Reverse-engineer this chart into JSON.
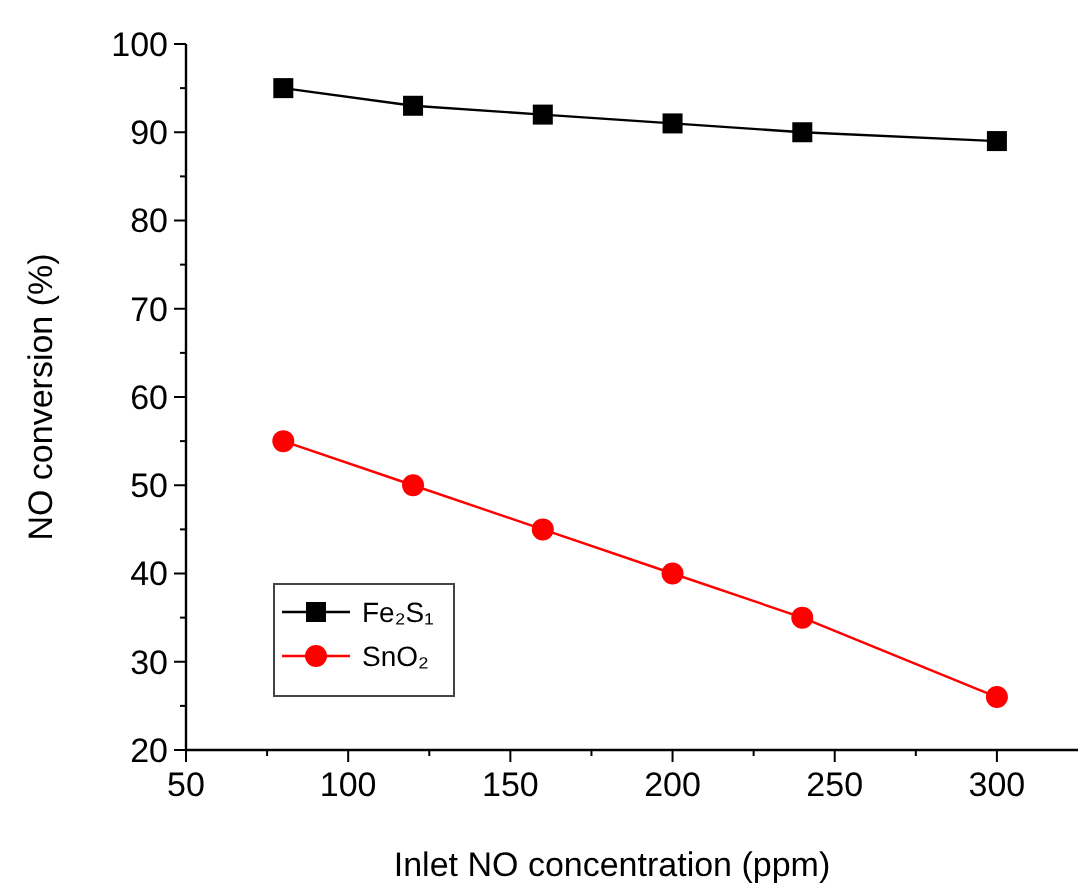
{
  "chart_data": {
    "type": "line",
    "xlabel": "Inlet NO concentration (ppm)",
    "ylabel": "NO conversion (%)",
    "x": [
      80,
      120,
      160,
      200,
      240,
      300
    ],
    "series": [
      {
        "name": "Fe₂S₁",
        "color": "#000000",
        "marker": "square",
        "values": [
          95,
          93,
          92,
          91,
          90,
          89
        ]
      },
      {
        "name": "SnO₂",
        "color": "#ff0000",
        "marker": "circle",
        "values": [
          55,
          50,
          45,
          40,
          35,
          26
        ]
      }
    ],
    "xlim": [
      50,
      325
    ],
    "xticks": [
      50,
      {
        "value": 75,
        "label": null
      },
      100,
      {
        "value": 125,
        "label": null
      },
      150,
      {
        "value": 175,
        "label": null
      },
      200,
      {
        "value": 225,
        "label": null
      },
      250,
      {
        "value": 275,
        "label": null
      },
      300
    ],
    "ylim": [
      20,
      100
    ],
    "yticks": [
      20,
      {
        "value": 25,
        "label": null
      },
      30,
      {
        "value": 35,
        "label": null
      },
      40,
      {
        "value": 45,
        "label": null
      },
      50,
      {
        "value": 55,
        "label": null
      },
      60,
      {
        "value": 65,
        "label": null
      },
      70,
      {
        "value": 75,
        "label": null
      },
      80,
      {
        "value": 85,
        "label": null
      },
      90,
      {
        "value": 95,
        "label": null
      },
      100
    ],
    "legend": "bottom left",
    "grid": false,
    "line_style": "solid"
  }
}
